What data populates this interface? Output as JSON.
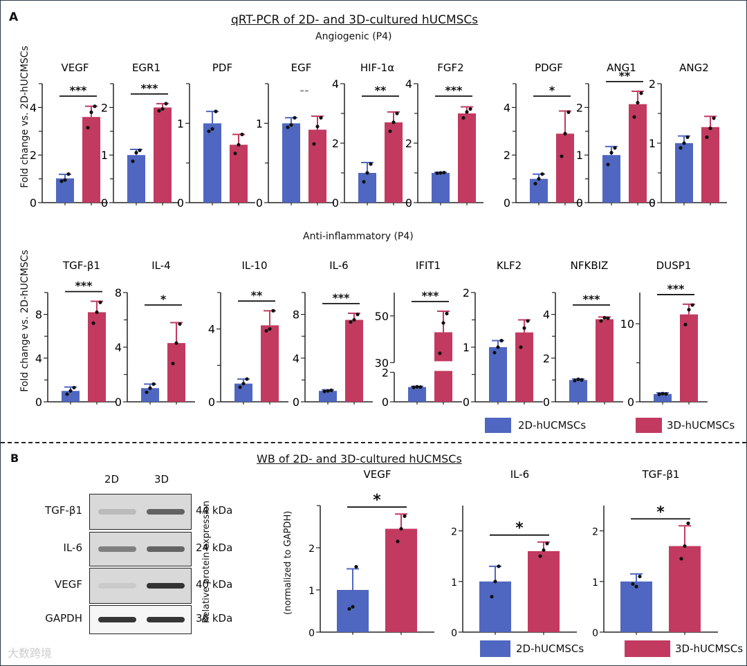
{
  "panel_a": {
    "letter": "A",
    "title": "qRT-PCR of 2D- and 3D-cultured hUCMSCs",
    "row1_title": "Angiogenic (P4)",
    "row2_title": "Anti-inflammatory (P4)",
    "ylabel": "Fold change vs. 2D-hUCMSCs"
  },
  "panel_b": {
    "letter": "B",
    "title": "WB of 2D- and 3D-cultured hUCMSCs",
    "lanes": [
      "2D",
      "3D"
    ],
    "blots": [
      {
        "protein": "TGF-β1",
        "size": "44 kDa"
      },
      {
        "protein": "IL-6",
        "size": "24 kDa"
      },
      {
        "protein": "VEGF",
        "size": "40 kDa"
      },
      {
        "protein": "GAPDH",
        "size": "36 kDa"
      }
    ],
    "ylabel1": "Relative protein expression",
    "ylabel2": "(normalized to GAPDH)"
  },
  "legend": {
    "items": [
      "2D-hUCMSCs",
      "3D-hUCMSCs"
    ]
  },
  "colors": {
    "2D": "#4f67c0",
    "3D": "#c23a60"
  },
  "watermark": "大数跨境",
  "chart_data": [
    {
      "type": "bar",
      "row": "angiogenic",
      "title": "VEGF",
      "ylim": [
        0,
        5
      ],
      "ticks": [
        0,
        2,
        4
      ],
      "minor": [
        1,
        3,
        5
      ],
      "values": [
        1.02,
        3.6
      ],
      "err": [
        0.17,
        0.45
      ],
      "points": [
        [
          0.9,
          0.95,
          1.2
        ],
        [
          3.15,
          3.8,
          4.05
        ]
      ],
      "sig": "***"
    },
    {
      "type": "bar",
      "row": "angiogenic",
      "title": "EGR1",
      "ylim": [
        0,
        2.5
      ],
      "ticks": [
        0,
        1,
        2
      ],
      "minor": [
        0.5,
        1.5,
        2.5
      ],
      "values": [
        1.0,
        2.0
      ],
      "err": [
        0.12,
        0.08
      ],
      "points": [
        [
          0.87,
          1.05,
          1.1
        ],
        [
          1.93,
          1.97,
          2.08
        ]
      ],
      "sig": "***"
    },
    {
      "type": "bar",
      "row": "angiogenic",
      "title": "PDF",
      "ylim": [
        0,
        1.5
      ],
      "ticks": [
        0,
        1
      ],
      "minor": [
        0.5,
        1.5
      ],
      "values": [
        1.0,
        0.73
      ],
      "err": [
        0.15,
        0.13
      ],
      "points": [
        [
          0.9,
          0.93,
          1.15
        ],
        [
          0.62,
          0.73,
          0.86
        ]
      ],
      "sig": ""
    },
    {
      "type": "bar",
      "row": "angiogenic",
      "title": "EGF",
      "ylim": [
        0,
        1.5
      ],
      "ticks": [
        0,
        1
      ],
      "minor": [
        0.5,
        1.5
      ],
      "values": [
        1.0,
        0.92
      ],
      "err": [
        0.07,
        0.17
      ],
      "points": [
        [
          0.95,
          0.98,
          1.07
        ],
        [
          0.74,
          0.96,
          1.07
        ]
      ],
      "sig": "--"
    },
    {
      "type": "bar",
      "row": "angiogenic",
      "title": "HIF-1α",
      "ylim": [
        0,
        4
      ],
      "ticks": [
        0,
        2,
        4
      ],
      "minor": [
        1,
        3
      ],
      "values": [
        1.0,
        2.7
      ],
      "err": [
        0.35,
        0.35
      ],
      "points": [
        [
          0.7,
          1.0,
          1.3
        ],
        [
          2.4,
          2.7,
          3.0
        ]
      ],
      "sig": "**"
    },
    {
      "type": "bar",
      "row": "angiogenic",
      "title": "FGF2",
      "ylim": [
        0,
        4
      ],
      "ticks": [
        0,
        2,
        4
      ],
      "minor": [
        1,
        3
      ],
      "values": [
        1.0,
        3.0
      ],
      "err": [
        0.02,
        0.22
      ],
      "points": [
        [
          0.99,
          1.0,
          1.01
        ],
        [
          2.85,
          3.05,
          3.15
        ]
      ],
      "sig": "***"
    },
    {
      "type": "bar",
      "row": "angiogenic",
      "title": "PDGF",
      "ylim": [
        0,
        5
      ],
      "ticks": [
        0,
        2,
        4
      ],
      "minor": [
        1,
        3,
        5
      ],
      "values": [
        1.0,
        2.9
      ],
      "err": [
        0.2,
        0.95
      ],
      "points": [
        [
          0.8,
          1.0,
          1.2
        ],
        [
          1.95,
          2.9,
          3.8
        ]
      ],
      "sig": "*"
    },
    {
      "type": "bar",
      "row": "angiogenic",
      "title": "ANG1",
      "ylim": [
        0,
        2.5
      ],
      "ticks": [
        0,
        1,
        2
      ],
      "minor": [
        0.5,
        1.5,
        2.5
      ],
      "values": [
        1.0,
        2.07
      ],
      "err": [
        0.18,
        0.27
      ],
      "points": [
        [
          0.8,
          1.05,
          1.15
        ],
        [
          1.8,
          2.1,
          2.3
        ]
      ],
      "sig": "**"
    },
    {
      "type": "bar",
      "row": "angiogenic",
      "title": "ANG2",
      "ylim": [
        0,
        2
      ],
      "ticks": [
        0,
        1,
        2
      ],
      "minor": [
        0.5,
        1.5
      ],
      "values": [
        1.0,
        1.27
      ],
      "err": [
        0.12,
        0.18
      ],
      "points": [
        [
          0.92,
          1.0,
          1.1
        ],
        [
          1.1,
          1.25,
          1.42
        ]
      ],
      "sig": ""
    },
    {
      "type": "bar",
      "row": "anti-inflammatory",
      "title": "TGF-β1",
      "ylim": [
        0,
        10
      ],
      "ticks": [
        0,
        4,
        8
      ],
      "minor": [
        2,
        6,
        10
      ],
      "values": [
        1.0,
        8.2
      ],
      "err": [
        0.35,
        1.0
      ],
      "points": [
        [
          0.7,
          1.0,
          1.3
        ],
        [
          7.2,
          8.2,
          9.1
        ]
      ],
      "sig": "***"
    },
    {
      "type": "bar",
      "row": "anti-inflammatory",
      "title": "IL-4",
      "ylim": [
        0,
        8
      ],
      "ticks": [
        0,
        4,
        8
      ],
      "minor": [
        2,
        6
      ],
      "values": [
        1.0,
        4.3
      ],
      "err": [
        0.3,
        1.5
      ],
      "points": [
        [
          0.7,
          1.0,
          1.3
        ],
        [
          2.8,
          4.3,
          5.7
        ]
      ],
      "sig": "*"
    },
    {
      "type": "bar",
      "row": "anti-inflammatory",
      "title": "IL-10",
      "ylim": [
        0,
        6
      ],
      "ticks": [
        0,
        4
      ],
      "minor": [
        2,
        6
      ],
      "values": [
        1.0,
        4.2
      ],
      "err": [
        0.25,
        0.8
      ],
      "points": [
        [
          0.8,
          1.0,
          1.25
        ],
        [
          3.9,
          4.0,
          5.0
        ]
      ],
      "sig": "**"
    },
    {
      "type": "bar",
      "row": "anti-inflammatory",
      "title": "IL-6",
      "ylim": [
        0,
        10
      ],
      "ticks": [
        0,
        4,
        8
      ],
      "minor": [
        2,
        6,
        10
      ],
      "values": [
        1.0,
        7.5
      ],
      "err": [
        0.1,
        0.6
      ],
      "points": [
        [
          0.95,
          1.0,
          1.05
        ],
        [
          7.3,
          7.5,
          8.0
        ]
      ],
      "sig": "***"
    },
    {
      "type": "bar",
      "row": "anti-inflammatory",
      "title": "IFIT1",
      "broken_axis": [
        2,
        30
      ],
      "ylim": [
        0,
        60
      ],
      "ticks": [
        0,
        2,
        30,
        50
      ],
      "values": [
        1.0,
        43
      ],
      "err": [
        0.05,
        9
      ],
      "points": [
        [
          0.98,
          1.02,
          1.0
        ],
        [
          34,
          47,
          51
        ]
      ],
      "sig": "***"
    },
    {
      "type": "bar",
      "row": "anti-inflammatory",
      "title": "KLF2",
      "ylim": [
        0,
        2
      ],
      "ticks": [
        0,
        1,
        2
      ],
      "minor": [
        0.5,
        1.5
      ],
      "values": [
        1.0,
        1.27
      ],
      "err": [
        0.12,
        0.23
      ],
      "points": [
        [
          0.9,
          1.0,
          1.12
        ],
        [
          1.0,
          1.35,
          1.48
        ]
      ],
      "sig": ""
    },
    {
      "type": "bar",
      "row": "anti-inflammatory",
      "title": "NFKBIZ",
      "ylim": [
        0,
        5
      ],
      "ticks": [
        0,
        2,
        4
      ],
      "minor": [
        1,
        3,
        5
      ],
      "values": [
        1.0,
        3.78
      ],
      "err": [
        0.05,
        0.1
      ],
      "points": [
        [
          0.97,
          1.03,
          1.0
        ],
        [
          3.7,
          3.85,
          3.82
        ]
      ],
      "sig": "***"
    },
    {
      "type": "bar",
      "row": "anti-inflammatory",
      "title": "DUSP1",
      "ylim": [
        0,
        14
      ],
      "ticks": [
        0,
        10
      ],
      "minor": [
        5
      ],
      "values": [
        1.0,
        11.2
      ],
      "err": [
        0.15,
        1.3
      ],
      "points": [
        [
          0.95,
          1.05,
          1.0
        ],
        [
          9.9,
          11.8,
          12.4
        ]
      ],
      "sig": "***"
    },
    {
      "type": "bar",
      "row": "wb",
      "title": "VEGF",
      "ylim": [
        0,
        3
      ],
      "ticks": [
        0,
        1,
        2
      ],
      "minor": [
        3
      ],
      "values": [
        1.0,
        2.45
      ],
      "err": [
        0.5,
        0.35
      ],
      "points": [
        [
          0.55,
          0.6,
          1.55
        ],
        [
          2.15,
          2.45,
          2.75
        ]
      ],
      "sig": "*"
    },
    {
      "type": "bar",
      "row": "wb",
      "title": "IL-6",
      "ylim": [
        0,
        2.5
      ],
      "ticks": [
        0,
        1,
        2
      ],
      "values": [
        1.0,
        1.6
      ],
      "err": [
        0.3,
        0.18
      ],
      "points": [
        [
          0.7,
          1.0,
          1.3
        ],
        [
          1.5,
          1.62,
          1.75
        ]
      ],
      "sig": "*"
    },
    {
      "type": "bar",
      "row": "wb",
      "title": "TGF-β1",
      "ylim": [
        0,
        2.5
      ],
      "ticks": [
        0,
        1,
        2
      ],
      "values": [
        1.0,
        1.7
      ],
      "err": [
        0.15,
        0.4
      ],
      "points": [
        [
          0.95,
          0.9,
          1.1
        ],
        [
          1.45,
          1.7,
          2.15
        ]
      ],
      "sig": "*"
    }
  ]
}
